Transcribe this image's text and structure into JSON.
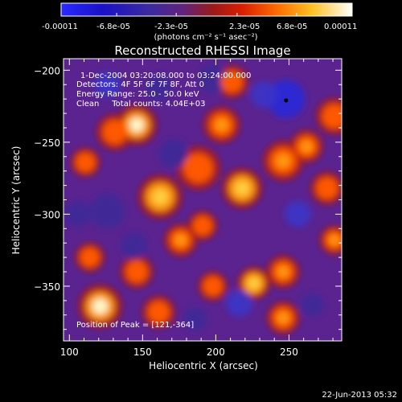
{
  "colorbar": {
    "tick_labels": [
      "-0.00011",
      "-6.8e-05",
      "-2.3e-05",
      "2.3e-05",
      "6.8e-05",
      "0.00011"
    ],
    "unit_label": "(photons cm⁻² s⁻¹ asec⁻²)",
    "min": -0.00011,
    "max": 0.00011
  },
  "chart_data": {
    "type": "heatmap",
    "title": "Reconstructed RHESSI Image",
    "xlabel": "Heliocentric X (arcsec)",
    "ylabel": "Heliocentric Y (arcsec)",
    "xlim": [
      96,
      286
    ],
    "ylim": [
      -388,
      -192
    ],
    "x_ticks": [
      100,
      150,
      200,
      250
    ],
    "y_ticks": [
      -200,
      -250,
      -300,
      -350
    ],
    "x_tick_labels": [
      "100",
      "150",
      "200",
      "250"
    ],
    "y_tick_labels": [
      "−200",
      "−250",
      "−300",
      "−350"
    ],
    "annotations": [
      "1-Dec-2004 03:20:08.000 to 03:24:00.000",
      "Detectors: 4F 5F 6F 7F 8F, Att 0",
      "Energy Range: 25.0 - 50.0 keV",
      "Clean     Total counts: 4.04E+03"
    ],
    "peak_text": "Position of Peak = [121,-364]",
    "peak": [
      121,
      -364
    ],
    "bright_sources": [
      {
        "x": 121,
        "y": -364,
        "level": 1.0,
        "r": 12
      },
      {
        "x": 146,
        "y": -238,
        "level": 0.95,
        "r": 11
      },
      {
        "x": 162,
        "y": -288,
        "level": 0.92,
        "r": 12
      },
      {
        "x": 131,
        "y": -243,
        "level": 0.7,
        "r": 10
      },
      {
        "x": 188,
        "y": -268,
        "level": 0.75,
        "r": 12
      },
      {
        "x": 204,
        "y": -238,
        "level": 0.8,
        "r": 10
      },
      {
        "x": 218,
        "y": -282,
        "level": 0.9,
        "r": 11
      },
      {
        "x": 246,
        "y": -263,
        "level": 0.8,
        "r": 11
      },
      {
        "x": 262,
        "y": -253,
        "level": 0.8,
        "r": 9
      },
      {
        "x": 281,
        "y": -232,
        "level": 0.7,
        "r": 10
      },
      {
        "x": 276,
        "y": -282,
        "level": 0.7,
        "r": 9
      },
      {
        "x": 281,
        "y": -318,
        "level": 0.85,
        "r": 8
      },
      {
        "x": 246,
        "y": -340,
        "level": 0.85,
        "r": 9
      },
      {
        "x": 226,
        "y": -348,
        "level": 0.9,
        "r": 9
      },
      {
        "x": 176,
        "y": -318,
        "level": 0.85,
        "r": 9
      },
      {
        "x": 191,
        "y": -308,
        "level": 0.75,
        "r": 8
      },
      {
        "x": 146,
        "y": -340,
        "level": 0.75,
        "r": 9
      },
      {
        "x": 198,
        "y": -350,
        "level": 0.7,
        "r": 8
      },
      {
        "x": 161,
        "y": -368,
        "level": 0.75,
        "r": 9
      },
      {
        "x": 246,
        "y": -372,
        "level": 0.8,
        "r": 9
      },
      {
        "x": 114,
        "y": -330,
        "level": 0.7,
        "r": 8
      },
      {
        "x": 211,
        "y": -208,
        "level": 0.7,
        "r": 9
      },
      {
        "x": 111,
        "y": -264,
        "level": 0.6,
        "r": 8
      }
    ],
    "dim_sources": [
      {
        "x": 248,
        "y": -220,
        "level": -0.9,
        "r": 13
      },
      {
        "x": 233,
        "y": -217,
        "level": -0.7,
        "r": 9
      },
      {
        "x": 198,
        "y": -206,
        "level": -0.4,
        "r": 10
      },
      {
        "x": 256,
        "y": -300,
        "level": -0.6,
        "r": 9
      },
      {
        "x": 126,
        "y": -298,
        "level": -0.5,
        "r": 12
      },
      {
        "x": 171,
        "y": -258,
        "level": -0.4,
        "r": 10
      },
      {
        "x": 144,
        "y": -322,
        "level": -0.5,
        "r": 9
      },
      {
        "x": 216,
        "y": -362,
        "level": -0.6,
        "r": 9
      },
      {
        "x": 266,
        "y": -363,
        "level": -0.5,
        "r": 8
      },
      {
        "x": 126,
        "y": -210,
        "level": -0.6,
        "r": 9
      },
      {
        "x": 161,
        "y": -212,
        "level": -0.5,
        "r": 9
      },
      {
        "x": 106,
        "y": -300,
        "level": -0.5,
        "r": 9
      },
      {
        "x": 186,
        "y": -373,
        "level": -0.4,
        "r": 8
      }
    ]
  },
  "footer": {
    "timestamp": "22-Jun-2013 05:32"
  }
}
